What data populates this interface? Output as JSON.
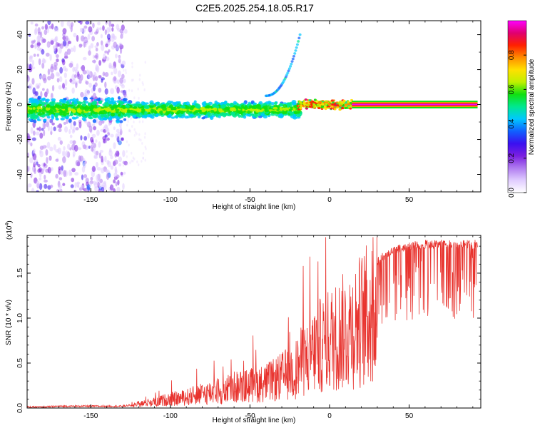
{
  "title": "C2E5.2025.254.18.05.R17",
  "colors": {
    "snr_line": "#e8332e",
    "colormap": [
      "#ffffff",
      "#e0ccff",
      "#b07cf0",
      "#7a1fe0",
      "#3a10f0",
      "#1060ff",
      "#00c8ff",
      "#00e890",
      "#10e010",
      "#c0f000",
      "#ffe000",
      "#ff8c00",
      "#ff2000",
      "#e00070",
      "#ff00ff"
    ]
  },
  "chart_data": [
    {
      "type": "heatmap",
      "xlabel": "Height of straight line (km)",
      "ylabel": "Frequency (Hz)",
      "xlim": [
        -190,
        95
      ],
      "ylim": [
        -50,
        48
      ],
      "xticks": [
        -150,
        -100,
        -50,
        0,
        50
      ],
      "xtick_labels": [
        "-150",
        "-100",
        "-50",
        "0",
        "50"
      ],
      "yticks": [
        -40,
        -20,
        0,
        20,
        40
      ],
      "ytick_labels": [
        "-40",
        "-20",
        "0",
        "20",
        "40"
      ],
      "colorbar": {
        "label": "Normalized spectral amplitude",
        "range": [
          0,
          1
        ],
        "ticks": [
          0.0,
          0.2,
          0.4,
          0.6,
          0.8
        ],
        "tick_labels": [
          "0.0",
          "0.2",
          "0.4",
          "0.6",
          "0.8"
        ]
      },
      "features": [
        {
          "x_range": [
            -190,
            -128
          ],
          "freq": [
            -50,
            48
          ],
          "amplitude": "0.05-0.3 scattered"
        },
        {
          "x_range": [
            -128,
            -20
          ],
          "freq_center": -3,
          "freq_halfwidth": 6,
          "amplitude": "0.3-0.6"
        },
        {
          "x_range": [
            -20,
            14
          ],
          "freq_center": 0,
          "freq_halfwidth": 3,
          "amplitude": "0.5-0.9"
        },
        {
          "x_range": [
            14,
            93
          ],
          "freq_center": 0,
          "freq_halfwidth": 2,
          "amplitude": "0.9-1.0"
        },
        {
          "x_range": [
            -40,
            -18
          ],
          "freq_from": 5,
          "freq_to": 40,
          "amplitude": "0.3-0.5 drifting line"
        }
      ]
    },
    {
      "type": "line",
      "xlabel": "Height of straight line (km)",
      "ylabel": "SNR (10 * v/v)",
      "y_scale_label": "(x10",
      "y_scale_exp": "4",
      "xlim": [
        -190,
        95
      ],
      "ylim": [
        0,
        1.92
      ],
      "xticks": [
        -150,
        -100,
        -50,
        0,
        50
      ],
      "xtick_labels": [
        "-150",
        "-100",
        "-50",
        "0",
        "50"
      ],
      "yticks": [
        0.0,
        0.5,
        1.0,
        1.5
      ],
      "ytick_labels": [
        "0.0",
        "0.5",
        "1.0",
        "1.5"
      ],
      "series": [
        {
          "x": [
            -190,
            -180,
            -170,
            -160,
            -150,
            -140,
            -130,
            -125,
            -120,
            -115,
            -110,
            -105,
            -100,
            -95,
            -90,
            -85,
            -80,
            -75,
            -70,
            -65,
            -60,
            -55,
            -50,
            -45,
            -40,
            -35,
            -30,
            -25,
            -22,
            -20,
            -18,
            -15,
            -12,
            -10,
            -8,
            -5,
            -2,
            0,
            5,
            10,
            15,
            20,
            25,
            30,
            35,
            40,
            45,
            50,
            55,
            60,
            65,
            70,
            75,
            80,
            85,
            90,
            93
          ],
          "y": [
            0.01,
            0.01,
            0.02,
            0.02,
            0.02,
            0.02,
            0.02,
            0.03,
            0.06,
            0.08,
            0.1,
            0.12,
            0.14,
            0.15,
            0.17,
            0.2,
            0.22,
            0.25,
            0.27,
            0.3,
            0.33,
            0.34,
            0.36,
            0.38,
            0.4,
            0.44,
            0.5,
            0.56,
            0.6,
            0.65,
            0.72,
            0.78,
            0.85,
            0.9,
            0.95,
            1.0,
            1.04,
            1.08,
            1.15,
            1.23,
            1.3,
            1.4,
            1.5,
            1.58,
            1.65,
            1.7,
            1.73,
            1.75,
            1.76,
            1.77,
            1.77,
            1.77,
            1.77,
            1.77,
            1.77,
            1.77,
            1.77
          ]
        }
      ]
    }
  ]
}
